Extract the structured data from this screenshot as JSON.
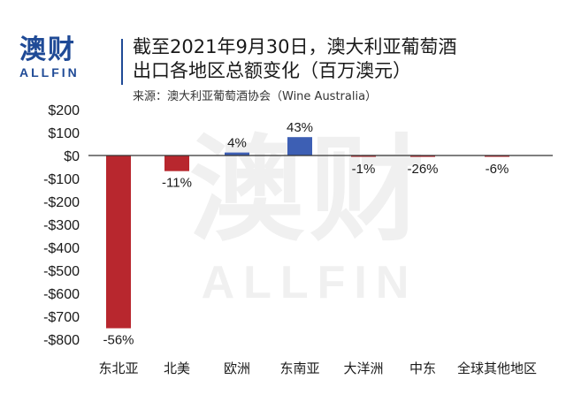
{
  "logo": {
    "cn": "澳财",
    "en": "ALLFIN"
  },
  "header": {
    "title_line1": "截至2021年9月30日，澳大利亚葡萄酒",
    "title_line2": "出口各地区总额变化（百万澳元）",
    "source": "来源：澳大利亚葡萄酒协会（Wine Australia）"
  },
  "watermark": {
    "cn": "澳财",
    "en": "ALLFIN"
  },
  "colors": {
    "negative": "#b8272e",
    "positive": "#3d5fb4",
    "brand": "#1f4a96"
  },
  "chart_data": {
    "type": "bar",
    "title": "截至2021年9月30日，澳大利亚葡萄酒出口各地区总额变化（百万澳元）",
    "xlabel": "",
    "ylabel": "",
    "categories": [
      "东北亚",
      "北美",
      "欧洲",
      "东南亚",
      "大洋洲",
      "中东",
      "全球其他地区"
    ],
    "values": [
      -752,
      -68,
      13,
      80,
      -3,
      -6,
      -2
    ],
    "data_labels": [
      "-56%",
      "-11%",
      "4%",
      "43%",
      "-1%",
      "-26%",
      "-6%"
    ],
    "ylim": [
      -800,
      200
    ],
    "yticks": [
      200,
      100,
      0,
      -100,
      -200,
      -300,
      -400,
      -500,
      -600,
      -700,
      -800
    ],
    "ytick_labels": [
      "$200",
      "$100",
      "$0",
      "-$100",
      "-$200",
      "-$300",
      "-$400",
      "-$500",
      "-$600",
      "-$700",
      "-$800"
    ],
    "grid": false,
    "legend": "none"
  }
}
